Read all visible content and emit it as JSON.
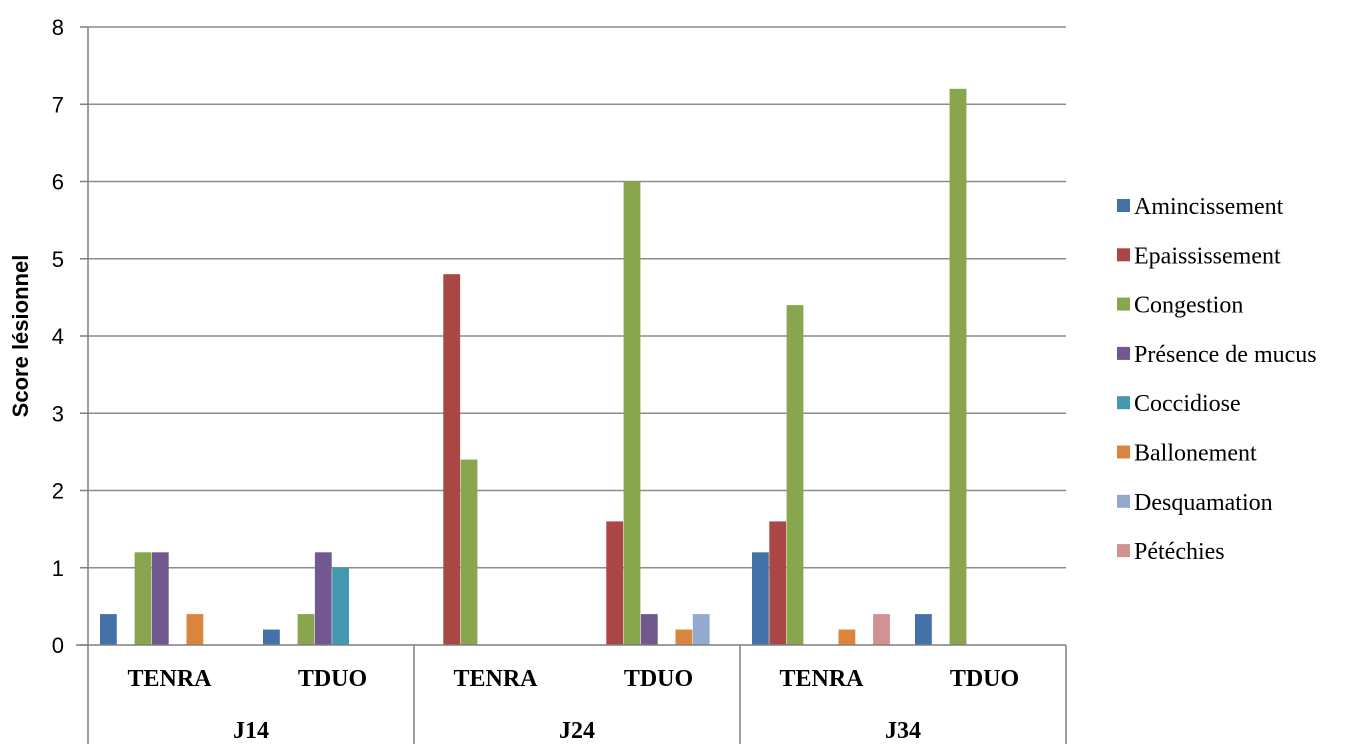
{
  "chart_data": {
    "type": "bar",
    "title": "",
    "ylabel": "Score lésionnel",
    "xlabel": "",
    "ylim": [
      0,
      8
    ],
    "y_ticks": [
      0,
      1,
      2,
      3,
      4,
      5,
      6,
      7,
      8
    ],
    "grid": true,
    "legend_position": "right",
    "groups": [
      {
        "label": "J14",
        "categories": [
          "TENRA",
          "TDUO"
        ]
      },
      {
        "label": "J24",
        "categories": [
          "TENRA",
          "TDUO"
        ]
      },
      {
        "label": "J34",
        "categories": [
          "TENRA",
          "TDUO"
        ]
      }
    ],
    "categories": [
      "TENRA",
      "TDUO",
      "TENRA",
      "TDUO",
      "TENRA",
      "TDUO"
    ],
    "series": [
      {
        "name": "Amincissement",
        "color": "#4472a8",
        "values": [
          0.4,
          0.2,
          0,
          0,
          1.2,
          0.4
        ]
      },
      {
        "name": "Epaississement",
        "color": "#aa4643",
        "values": [
          0,
          0,
          4.8,
          1.6,
          1.6,
          0
        ]
      },
      {
        "name": "Congestion",
        "color": "#89a54e",
        "values": [
          1.2,
          0.4,
          2.4,
          6.0,
          4.4,
          7.2
        ]
      },
      {
        "name": "Présence de mucus",
        "color": "#71588f",
        "values": [
          1.2,
          1.2,
          0,
          0.4,
          0,
          0
        ]
      },
      {
        "name": "Coccidiose",
        "color": "#4198af",
        "values": [
          0,
          1.0,
          0,
          0,
          0,
          0
        ]
      },
      {
        "name": "Ballonement",
        "color": "#db843d",
        "values": [
          0.4,
          0,
          0,
          0.2,
          0.2,
          0
        ]
      },
      {
        "name": "Desquamation",
        "color": "#93a9cf",
        "values": [
          0,
          0,
          0,
          0.4,
          0,
          0
        ]
      },
      {
        "name": "Pétéchies",
        "color": "#d19392",
        "values": [
          0,
          0,
          0,
          0,
          0.4,
          0
        ]
      }
    ]
  }
}
